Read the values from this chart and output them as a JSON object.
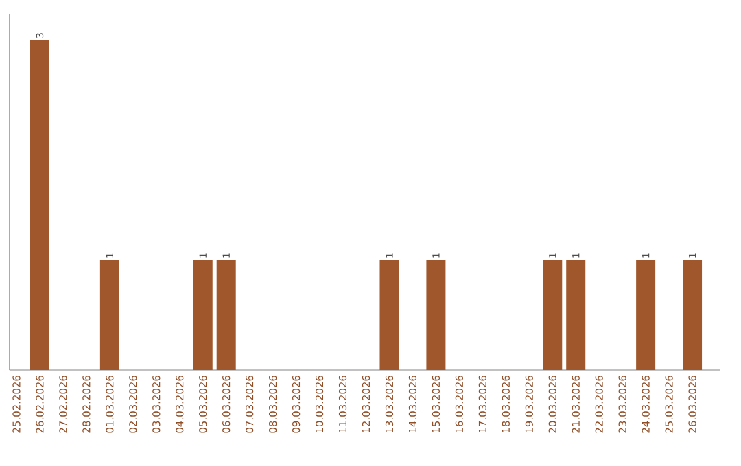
{
  "chart_data": {
    "type": "bar",
    "categories": [
      "25.02.2026",
      "26.02.2026",
      "27.02.2026",
      "28.02.2026",
      "01.03.2026",
      "02.03.2026",
      "03.03.2026",
      "04.03.2026",
      "05.03.2026",
      "06.03.2026",
      "07.03.2026",
      "08.03.2026",
      "09.03.2026",
      "10.03.2026",
      "11.03.2026",
      "12.03.2026",
      "13.03.2026",
      "14.03.2026",
      "15.03.2026",
      "16.03.2026",
      "17.03.2026",
      "18.03.2026",
      "19.03.2026",
      "20.03.2026",
      "21.03.2026",
      "22.03.2026",
      "23.03.2026",
      "24.03.2026",
      "25.03.2026",
      "26.03.2026"
    ],
    "values": [
      0,
      3,
      0,
      0,
      1,
      0,
      0,
      0,
      1,
      1,
      0,
      0,
      0,
      0,
      0,
      0,
      1,
      0,
      1,
      0,
      0,
      0,
      0,
      1,
      1,
      0,
      0,
      1,
      0,
      1
    ],
    "value_labels": [
      null,
      "3",
      null,
      null,
      "1",
      null,
      null,
      null,
      "1",
      "1",
      null,
      null,
      null,
      null,
      null,
      null,
      "1",
      null,
      "1",
      null,
      null,
      null,
      null,
      "1",
      "1",
      null,
      null,
      "1",
      null,
      "1"
    ],
    "color": "#a0572b"
  }
}
